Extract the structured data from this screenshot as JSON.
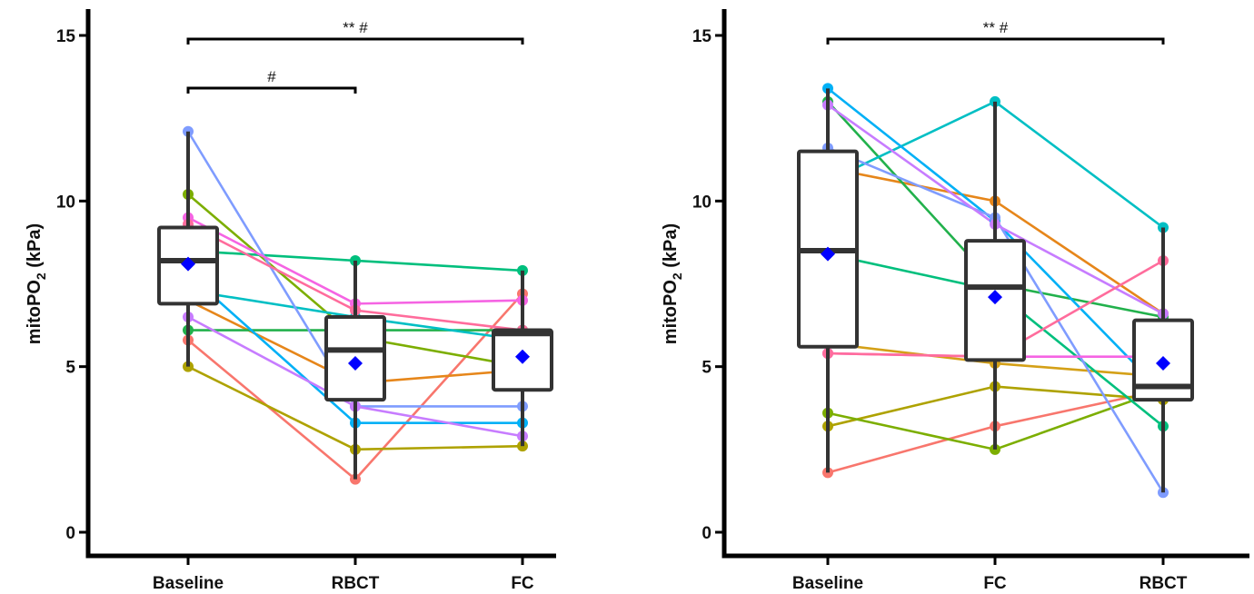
{
  "chart_data": [
    {
      "type": "box",
      "title": "",
      "ylabel": "mitoPO",
      "ylabel_sub": "2",
      "ylabel_unit": " (kPa)",
      "ylim": [
        0,
        15
      ],
      "yticks": [
        0,
        5,
        10,
        15
      ],
      "categories": [
        "Baseline",
        "RBCT",
        "FC"
      ],
      "boxes": [
        {
          "q1": 6.9,
          "median": 8.2,
          "q3": 9.2,
          "whisker_low": 5.0,
          "whisker_high": 12.1,
          "mean": 8.1
        },
        {
          "q1": 4.0,
          "median": 5.5,
          "q3": 6.5,
          "whisker_low": 1.6,
          "whisker_high": 8.2,
          "mean": 5.1
        },
        {
          "q1": 4.3,
          "median": 6.0,
          "q3": 6.1,
          "whisker_low": 2.6,
          "whisker_high": 7.9,
          "mean": 5.3
        }
      ],
      "series": [
        {
          "color": "#f8766d",
          "values": [
            5.8,
            1.6,
            7.2
          ]
        },
        {
          "color": "#e6861a",
          "values": [
            7.0,
            4.5,
            4.9
          ]
        },
        {
          "color": "#aea200",
          "values": [
            5.0,
            2.5,
            2.6
          ]
        },
        {
          "color": "#7cae00",
          "values": [
            10.2,
            5.9,
            5.0
          ]
        },
        {
          "color": "#22b14c",
          "values": [
            6.1,
            6.1,
            6.1
          ]
        },
        {
          "color": "#00bf7d",
          "values": [
            8.5,
            8.2,
            7.9
          ]
        },
        {
          "color": "#00bfc4",
          "values": [
            7.3,
            6.5,
            5.8
          ]
        },
        {
          "color": "#00b0f6",
          "values": [
            7.8,
            3.3,
            3.3
          ]
        },
        {
          "color": "#7f9cff",
          "values": [
            12.1,
            3.8,
            3.8
          ]
        },
        {
          "color": "#c77cff",
          "values": [
            6.5,
            3.8,
            2.9
          ]
        },
        {
          "color": "#f564e3",
          "values": [
            9.5,
            6.9,
            7.0
          ]
        },
        {
          "color": "#ff6c9c",
          "values": [
            9.3,
            6.7,
            6.1
          ]
        }
      ],
      "significance": [
        {
          "from": "Baseline",
          "to": "RBCT",
          "label": "#"
        },
        {
          "from": "Baseline",
          "to": "FC",
          "label": "** #"
        }
      ]
    },
    {
      "type": "box",
      "title": "",
      "ylabel": "mitoPO",
      "ylabel_sub": "2",
      "ylabel_unit": " (kPa)",
      "ylim": [
        0,
        15
      ],
      "yticks": [
        0,
        5,
        10,
        15
      ],
      "categories": [
        "Baseline",
        "FC",
        "RBCT"
      ],
      "boxes": [
        {
          "q1": 5.6,
          "median": 8.5,
          "q3": 11.5,
          "whisker_low": 1.8,
          "whisker_high": 13.4,
          "mean": 8.4
        },
        {
          "q1": 5.2,
          "median": 7.4,
          "q3": 8.8,
          "whisker_low": 2.5,
          "whisker_high": 13.0,
          "mean": 7.1
        },
        {
          "q1": 4.0,
          "median": 4.4,
          "q3": 6.4,
          "whisker_low": 1.2,
          "whisker_high": 9.2,
          "mean": 5.1
        }
      ],
      "series": [
        {
          "color": "#f8766d",
          "values": [
            1.8,
            3.2,
            4.3
          ]
        },
        {
          "color": "#e6861a",
          "values": [
            11.0,
            10.0,
            6.6
          ]
        },
        {
          "color": "#aea200",
          "values": [
            3.2,
            4.4,
            4.0
          ]
        },
        {
          "color": "#d4a017",
          "values": [
            5.7,
            5.1,
            4.7
          ]
        },
        {
          "color": "#7cae00",
          "values": [
            3.6,
            2.5,
            4.3
          ]
        },
        {
          "color": "#22b14c",
          "values": [
            13.0,
            7.5,
            6.5
          ]
        },
        {
          "color": "#00bf7d",
          "values": [
            8.4,
            7.3,
            3.2
          ]
        },
        {
          "color": "#00bfc4",
          "values": [
            10.6,
            13.0,
            9.2
          ]
        },
        {
          "color": "#00b0f6",
          "values": [
            13.4,
            9.4,
            4.2
          ]
        },
        {
          "color": "#7f9cff",
          "values": [
            11.6,
            9.5,
            1.2
          ]
        },
        {
          "color": "#c77cff",
          "values": [
            12.9,
            9.3,
            6.6
          ]
        },
        {
          "color": "#f564e3",
          "values": [
            5.4,
            5.3,
            5.3
          ]
        },
        {
          "color": "#ff6c9c",
          "values": [
            5.4,
            5.3,
            8.2
          ]
        }
      ],
      "significance": [
        {
          "from": "Baseline",
          "to": "RBCT",
          "label": "** #"
        }
      ]
    }
  ],
  "style": {
    "axis_color": "#000000",
    "box_color": "#333333",
    "mean_color": "#0000ff"
  }
}
